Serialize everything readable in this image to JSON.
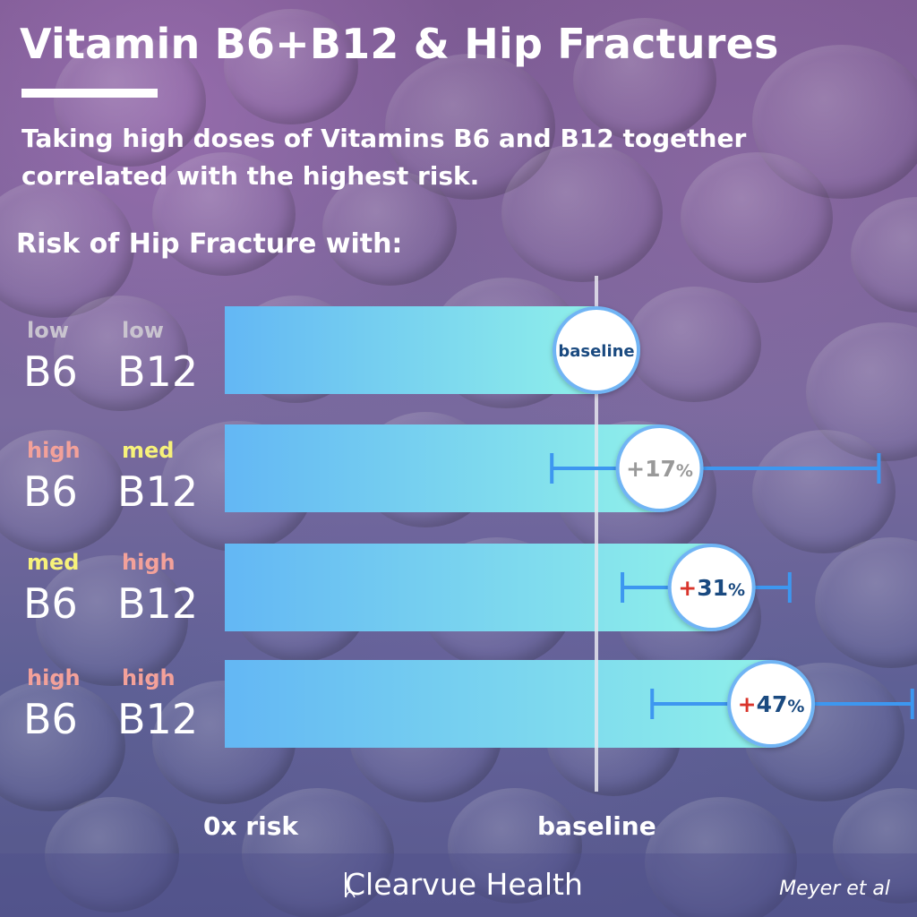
{
  "header": {
    "title": "Vitamin B6+B12 & Hip Fractures",
    "subtitle": "Taking high doses of Vitamins B6 and B12 together correlated with the highest risk.",
    "section_heading": "Risk of Hip Fracture with:"
  },
  "footer": {
    "brand": "Clearvue Health",
    "citation": "Meyer et al"
  },
  "colors": {
    "bar_start": "#63b7f4",
    "bar_end": "#8ff0ea",
    "error_bar": "#3d97f0",
    "bubble_border": "#6fb4f4",
    "plus_red": "#d9342b",
    "text_navy": "#1a4a80",
    "text_gray": "#999999"
  },
  "chart_data": {
    "type": "bar",
    "orientation": "horizontal",
    "categories": [
      {
        "b6_level": "low",
        "b6": "B6",
        "b12_level": "low",
        "b12": "B12"
      },
      {
        "b6_level": "high",
        "b6": "B6",
        "b12_level": "med",
        "b12": "B12"
      },
      {
        "b6_level": "med",
        "b6": "B6",
        "b12_level": "high",
        "b12": "B12"
      },
      {
        "b6_level": "high",
        "b6": "B6",
        "b12_level": "high",
        "b12": "B12"
      }
    ],
    "values": [
      1.0,
      1.17,
      1.31,
      1.47
    ],
    "ci_low": [
      null,
      0.88,
      1.07,
      1.15
    ],
    "ci_high": [
      null,
      1.76,
      1.52,
      1.85
    ],
    "value_labels": [
      {
        "text": "baseline",
        "plus": "",
        "number": "",
        "percent": ""
      },
      {
        "text": "",
        "plus": "+",
        "number": "17",
        "percent": "%"
      },
      {
        "text": "",
        "plus": "+",
        "number": "31",
        "percent": "%"
      },
      {
        "text": "",
        "plus": "+",
        "number": "47",
        "percent": "%"
      }
    ],
    "x_tick_labels": [
      "0x risk",
      "baseline"
    ],
    "x_ticks": [
      0,
      1.0
    ],
    "xlim": [
      0,
      1.82
    ],
    "reference_line": 1.0,
    "legend": null,
    "grid": false
  }
}
